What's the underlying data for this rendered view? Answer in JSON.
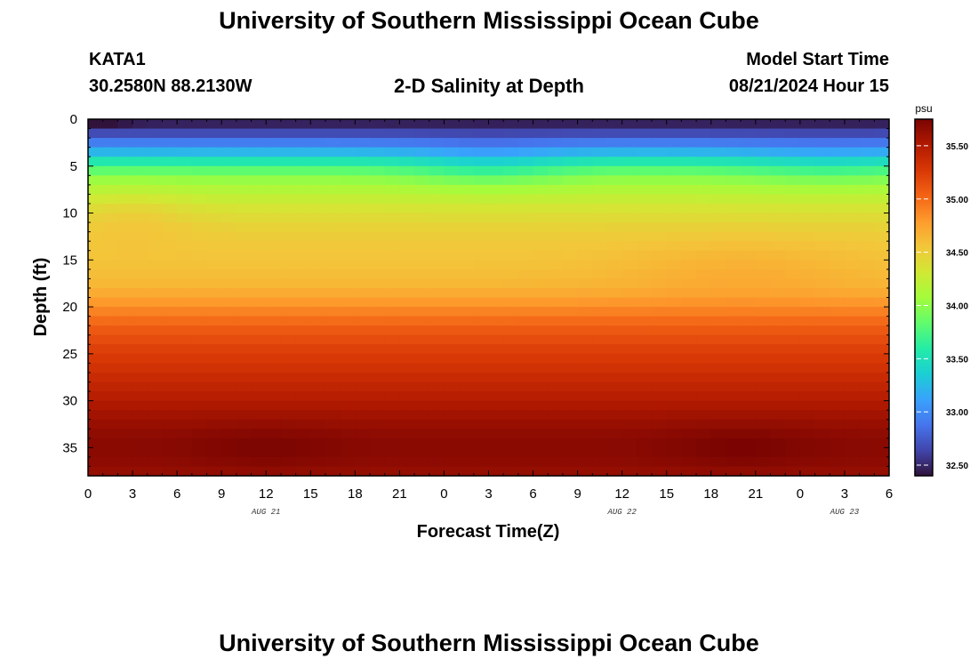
{
  "header": {
    "title": "University of Southern Mississippi Ocean Cube",
    "station": "KATA1",
    "coords": "30.2580N  88.2130W",
    "plot_title": "2-D Salinity at Depth",
    "model_start_label": "Model Start Time",
    "model_start_value": "08/21/2024 Hour 15"
  },
  "footer": {
    "title": "University of Southern Mississippi Ocean Cube"
  },
  "chart_data": {
    "type": "heatmap",
    "title": "2-D Salinity at Depth",
    "xlabel": "Forecast Time(Z)",
    "ylabel": "Depth (ft)",
    "x_tick_labels": [
      "0",
      "3",
      "6",
      "9",
      "12",
      "15",
      "18",
      "21",
      "0",
      "3",
      "6",
      "9",
      "12",
      "15",
      "18",
      "21",
      "0",
      "3",
      "6"
    ],
    "x_range_hours": [
      0,
      54
    ],
    "date_labels": [
      {
        "label": "AUG 21",
        "hour": 12
      },
      {
        "label": "AUG 22",
        "hour": 36
      },
      {
        "label": "AUG 23",
        "hour": 51
      }
    ],
    "y_ticks": [
      0,
      5,
      10,
      15,
      20,
      25,
      30,
      35
    ],
    "y_range_ft": [
      0,
      38
    ],
    "y_inverted": true,
    "colorbar": {
      "unit": "psu",
      "range": [
        32.4,
        35.75
      ],
      "ticks": [
        "32.50",
        "33.00",
        "33.50",
        "34.00",
        "34.50",
        "35.00",
        "35.50"
      ],
      "tick_values": [
        32.5,
        33.0,
        33.5,
        34.0,
        34.5,
        35.0,
        35.5
      ],
      "colors": [
        "#30123b",
        "#4145ab",
        "#4675ed",
        "#39a2fc",
        "#1bcfd4",
        "#24eca6",
        "#61fc6c",
        "#a4fc3b",
        "#d1e834",
        "#f3c63a",
        "#fe9b2d",
        "#f36315",
        "#d93806",
        "#b11901",
        "#7a0402"
      ]
    },
    "depth_ft": [
      0,
      1,
      2,
      3,
      4,
      5,
      6,
      7,
      8,
      9,
      10,
      12,
      14,
      16,
      18,
      20,
      22,
      24,
      26,
      28,
      30,
      32,
      34,
      36,
      38
    ],
    "salinity_profile_psu": [
      32.4,
      32.55,
      32.8,
      33.05,
      33.4,
      33.7,
      33.95,
      34.1,
      34.2,
      34.3,
      34.38,
      34.5,
      34.55,
      34.58,
      34.65,
      34.85,
      35.05,
      35.2,
      35.3,
      35.4,
      35.5,
      35.6,
      35.68,
      35.68,
      35.62
    ],
    "time_variation": "surface layer slightly fresher near hours 24-30 and 45-54; mid-depth maximum near hours 42-51 at 14-18 ft; deep maximum near hours 12-18 and 42-48 at 34-36 ft"
  }
}
